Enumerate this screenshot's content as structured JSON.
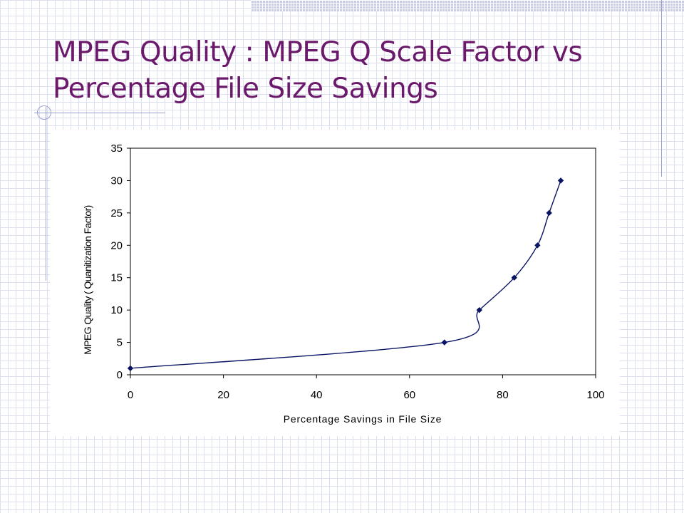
{
  "slide": {
    "title": "MPEG Quality : MPEG Q Scale Factor vs Percentage File Size Savings"
  },
  "chart_data": {
    "type": "line",
    "title": "",
    "xlabel": "Percentage Savings in File Size",
    "ylabel": "MPEG Quality ( Quanitization Factor)",
    "xlim": [
      0,
      100
    ],
    "ylim": [
      0,
      35
    ],
    "xticks": [
      0,
      20,
      40,
      60,
      80,
      100
    ],
    "yticks": [
      0,
      5,
      10,
      15,
      20,
      25,
      30,
      35
    ],
    "grid": false,
    "marker": "diamond",
    "smooth": true,
    "color": "#0a1464",
    "series": [
      {
        "x": [
          0,
          67.5,
          75,
          82.5,
          87.5,
          90,
          92.5
        ],
        "y": [
          1,
          5,
          10,
          15,
          20,
          25,
          30
        ]
      }
    ]
  }
}
